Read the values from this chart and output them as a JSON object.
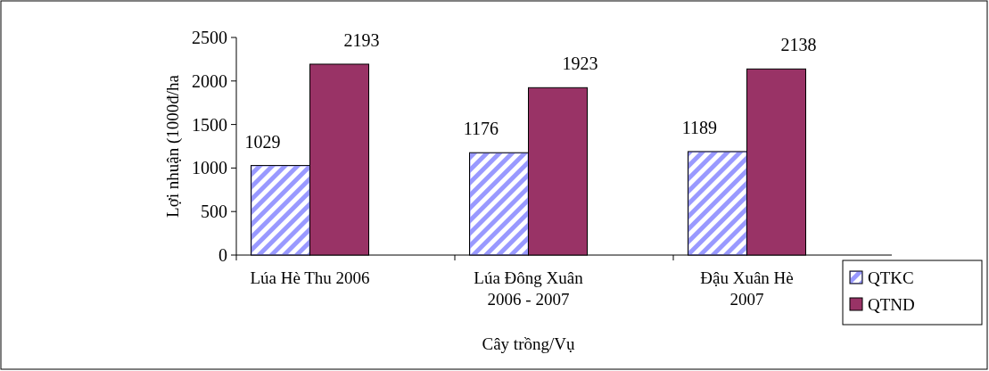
{
  "chart_data": {
    "type": "bar",
    "xlabel": "Cây trồng/Vụ",
    "ylabel": "Lợi nhuận (1000đ/ha",
    "categories": [
      "Lúa Hè Thu 2006",
      "Lúa Đông Xuân 2006 - 2007",
      "Đậu Xuân Hè 2007"
    ],
    "series": [
      {
        "name": "QTKC",
        "color": "#9999ff",
        "values": [
          1029,
          1176,
          1189
        ]
      },
      {
        "name": "QTND",
        "color": "#993366",
        "values": [
          2193,
          1923,
          2138
        ]
      }
    ],
    "ylim": [
      0,
      2500
    ],
    "yticks": [
      0,
      500,
      1000,
      1500,
      2000,
      2500
    ],
    "data_labels": true,
    "legend": "bottom right",
    "grid": false
  }
}
